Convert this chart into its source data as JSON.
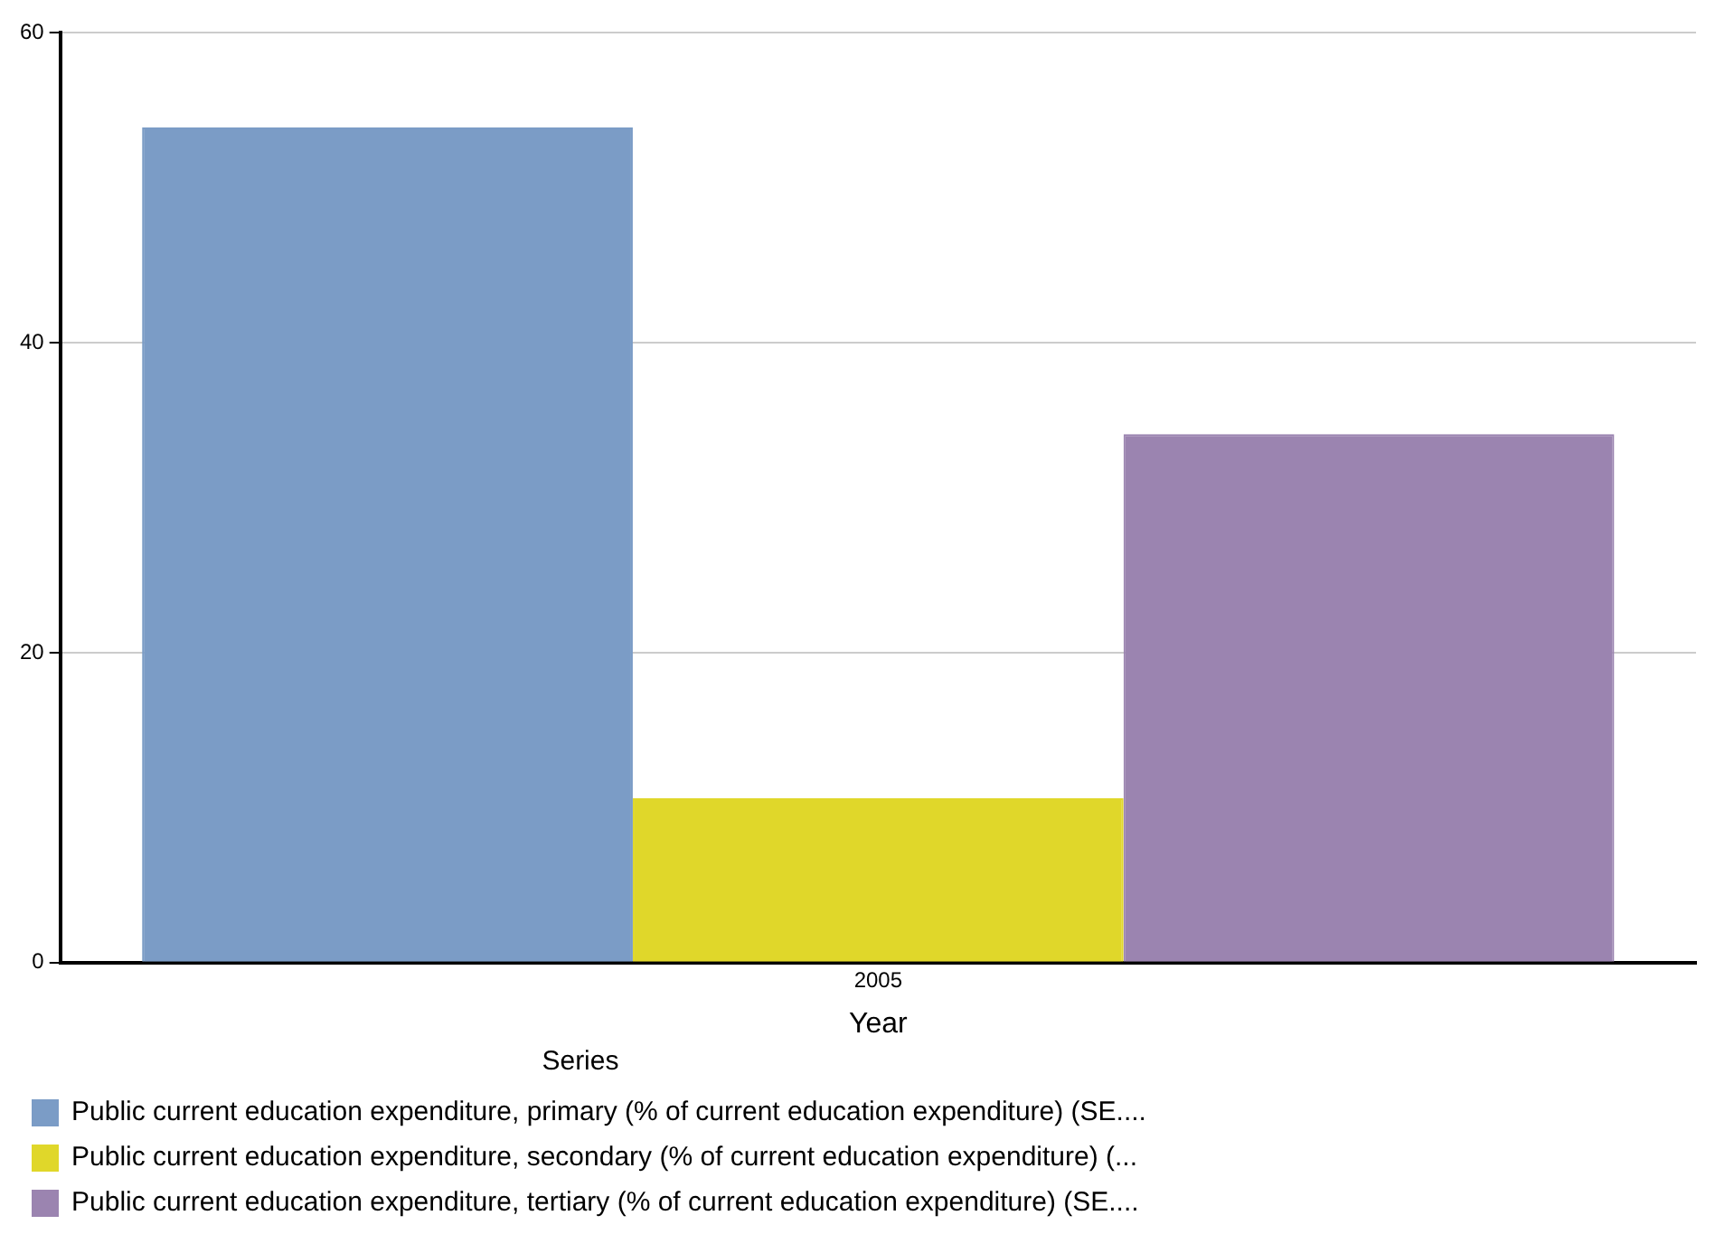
{
  "chart_data": {
    "type": "bar",
    "xlabel": "Year",
    "legend_title": "Series",
    "categories": [
      "2005"
    ],
    "series": [
      {
        "name": "Public current education expenditure, primary (% of current education expenditure) (SE....",
        "color": "#7b9cc6",
        "values": [
          53.9
        ]
      },
      {
        "name": "Public current education expenditure, secondary (% of current education expenditure) (...",
        "color": "#e0d72a",
        "values": [
          10.6
        ]
      },
      {
        "name": "Public current education expenditure, tertiary (% of current education expenditure) (SE....",
        "color": "#9b84b0",
        "values": [
          34.1
        ]
      }
    ],
    "ylim": [
      0,
      60
    ],
    "yticks": [
      0,
      20,
      40,
      60
    ],
    "grid": "y",
    "legend": "bottom"
  }
}
